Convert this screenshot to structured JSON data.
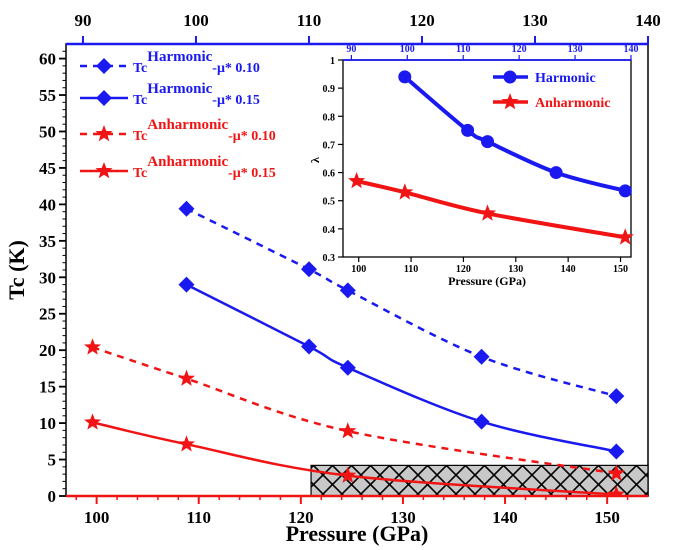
{
  "colors": {
    "blue": "#1a1af0",
    "red": "#f01414",
    "axis_top": "#1a1af0",
    "axis_bottom": "#f01414"
  },
  "chart_data": [
    {
      "type": "line",
      "ylabel": "Tc (K)",
      "xlabel": "Pressure (GPa)",
      "xlim": [
        97,
        154
      ],
      "ylim": [
        0,
        62
      ],
      "x_ticks": [
        100,
        110,
        120,
        130,
        140,
        150
      ],
      "y_ticks": [
        0,
        5,
        10,
        15,
        20,
        25,
        30,
        35,
        40,
        45,
        50,
        55,
        60
      ],
      "top_axis": {
        "lim": [
          88.5,
          140
        ],
        "ticks": [
          90,
          100,
          110,
          120,
          130,
          140
        ]
      },
      "grid": false,
      "legend_placement": "top-left",
      "shaded_region": {
        "x": [
          121,
          154
        ],
        "y": [
          0,
          4.2
        ],
        "pattern": "crosshatch"
      },
      "series": [
        {
          "name": "Harmonic",
          "base": "Tc",
          "mu": "-μ* 0.10",
          "color": "blue",
          "marker": "diamond",
          "line": "dashed",
          "x": [
            108.8,
            120.8,
            124.6,
            137.7,
            150.9
          ],
          "y": [
            39.4,
            31.1,
            28.2,
            19.1,
            13.7
          ]
        },
        {
          "name": "Harmonic",
          "base": "Tc",
          "mu": "-μ* 0.15",
          "color": "blue",
          "marker": "diamond",
          "line": "solid",
          "x": [
            108.8,
            120.8,
            124.6,
            137.7,
            150.9
          ],
          "y": [
            29.0,
            20.5,
            17.6,
            10.2,
            6.1
          ]
        },
        {
          "name": "Anharmonic",
          "base": "Tc",
          "mu": "-μ* 0.10",
          "color": "red",
          "marker": "star",
          "line": "dashed",
          "x": [
            99.6,
            108.8,
            124.6,
            150.9
          ],
          "y": [
            20.4,
            16.1,
            8.9,
            3.1
          ]
        },
        {
          "name": "Anharmonic",
          "base": "Tc",
          "mu": "-μ* 0.15",
          "color": "red",
          "marker": "star",
          "line": "solid",
          "x": [
            99.6,
            108.8,
            124.6,
            150.9
          ],
          "y": [
            10.1,
            7.1,
            2.8,
            0.2
          ]
        }
      ]
    },
    {
      "type": "line",
      "ylabel": "λ",
      "xlabel": "Pressure (GPa)",
      "xlim": [
        97,
        152
      ],
      "ylim": [
        0.3,
        1.0
      ],
      "x_ticks": [
        100,
        110,
        120,
        130,
        140,
        150
      ],
      "y_ticks": [
        0.3,
        0.4,
        0.5,
        0.6,
        0.7,
        0.8,
        0.9,
        1.0
      ],
      "y_tick_labels": [
        "0.3",
        "0.4",
        "0.5",
        "0.6",
        "0.7",
        "0.8",
        "0.9",
        "1"
      ],
      "top_axis": {
        "lim": [
          88.5,
          140
        ],
        "ticks": [
          90,
          100,
          110,
          120,
          130,
          140
        ]
      },
      "legend_placement": "top-right",
      "series": [
        {
          "name": "Harmonic",
          "color": "blue",
          "marker": "circle",
          "x": [
            108.8,
            120.8,
            124.6,
            137.7,
            150.9
          ],
          "y": [
            0.94,
            0.75,
            0.71,
            0.6,
            0.535
          ]
        },
        {
          "name": "Anharmonic",
          "color": "red",
          "marker": "star",
          "x": [
            99.6,
            108.8,
            124.6,
            150.9
          ],
          "y": [
            0.57,
            0.53,
            0.455,
            0.37
          ]
        }
      ]
    }
  ]
}
